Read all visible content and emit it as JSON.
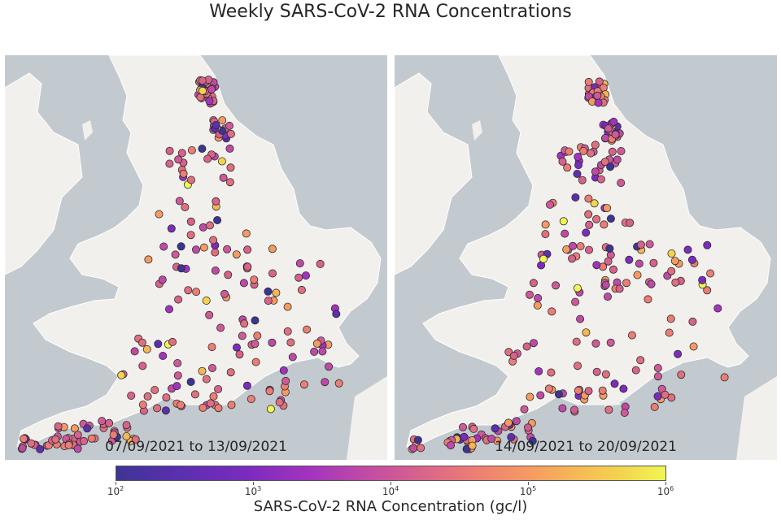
{
  "title": "Weekly SARS-CoV-2 RNA Concentrations",
  "colors": {
    "sea": "#c3cacf",
    "land": "#f2f0ec",
    "coast": "#ffffff"
  },
  "panels": [
    {
      "date_range": "07/09/2021 to 13/09/2021"
    },
    {
      "date_range": "14/09/2021 to 20/09/2021"
    }
  ],
  "colorbar": {
    "label": "SARS-CoV-2 RNA Concentration (gc/l)",
    "ticks": [
      {
        "base": "10",
        "exp": "2"
      },
      {
        "base": "10",
        "exp": "3"
      },
      {
        "base": "10",
        "exp": "4"
      },
      {
        "base": "10",
        "exp": "5"
      },
      {
        "base": "10",
        "exp": "6"
      }
    ]
  }
}
